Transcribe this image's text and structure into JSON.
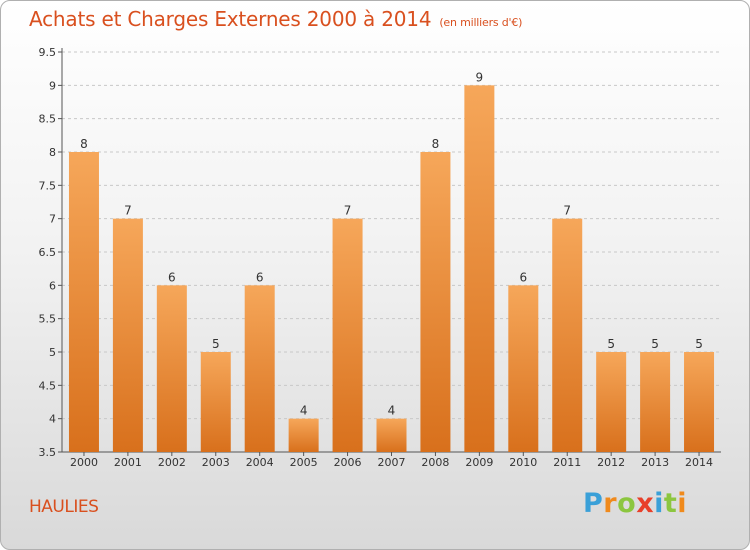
{
  "title": "Achats et Charges Externes 2000 à 2014",
  "unit": "(en milliers d'€)",
  "town": "HAULIES",
  "logo": [
    "P",
    "r",
    "o",
    "x",
    "i",
    "t",
    "i"
  ],
  "colors": {
    "bar_light": "#f6a75a",
    "bar_dark": "#d8701c",
    "title": "#d9501f",
    "grid": "#c8c8c8",
    "logo": [
      "#3aa0d8",
      "#f08a1c",
      "#8cc63f",
      "#e8402a",
      "#3aa0d8",
      "#8cc63f",
      "#f08a1c"
    ]
  },
  "chart_data": {
    "type": "bar",
    "categories": [
      "2000",
      "2001",
      "2002",
      "2003",
      "2004",
      "2005",
      "2006",
      "2007",
      "2008",
      "2009",
      "2010",
      "2011",
      "2012",
      "2013",
      "2014"
    ],
    "values": [
      8,
      7,
      6,
      5,
      6,
      4,
      7,
      4,
      8,
      9,
      6,
      7,
      5,
      5,
      5
    ],
    "ylim": [
      3.5,
      9.5
    ],
    "yticks": [
      "3.5",
      "4",
      "4.5",
      "5",
      "5.5",
      "6",
      "6.5",
      "7",
      "7.5",
      "8",
      "8.5",
      "9",
      "9.5"
    ],
    "grid": true
  }
}
